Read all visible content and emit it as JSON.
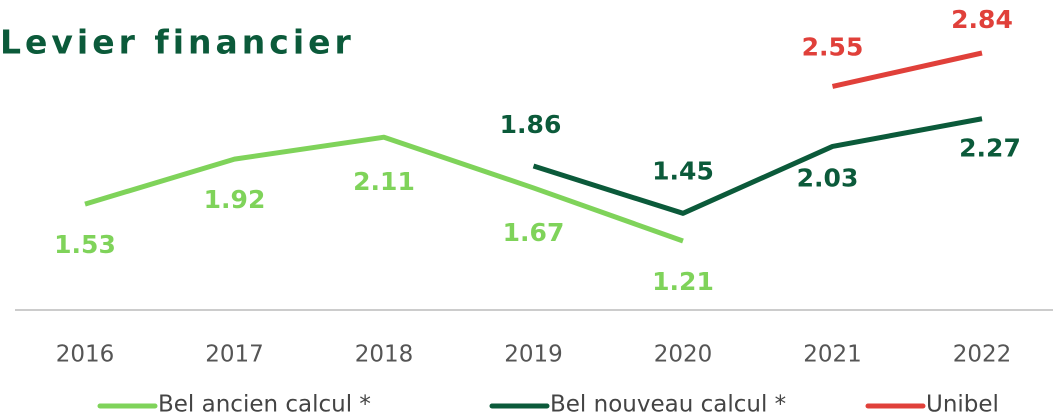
{
  "chart_data": {
    "type": "line",
    "title": "Levier financier",
    "categories": [
      "2016",
      "2017",
      "2018",
      "2019",
      "2020",
      "2021",
      "2022"
    ],
    "series": [
      {
        "name": "Bel ancien calcul *",
        "color": "#7fd35a",
        "values": [
          1.53,
          1.92,
          2.11,
          1.67,
          1.21,
          null,
          null
        ]
      },
      {
        "name": "Bel nouveau calcul *",
        "color": "#0b5a3a",
        "values": [
          null,
          null,
          null,
          1.86,
          1.45,
          2.03,
          2.27
        ]
      },
      {
        "name": "Unibel",
        "color": "#e0403a",
        "values": [
          null,
          null,
          null,
          null,
          null,
          2.55,
          2.84
        ]
      }
    ]
  }
}
